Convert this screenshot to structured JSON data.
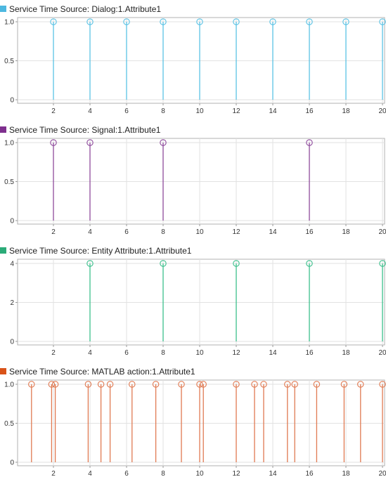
{
  "chart_data": [
    {
      "type": "stem",
      "title": "Service Time Source:  Dialog:1.Attribute1",
      "legend_color": "#4db8e0",
      "color": "#5ac2e4",
      "xlim": [
        0,
        20.2
      ],
      "ylim": [
        0,
        1.0
      ],
      "xticks": [
        2,
        4,
        6,
        8,
        10,
        12,
        14,
        16,
        18,
        20
      ],
      "yticks": [
        0,
        0.5,
        1.0
      ],
      "ytick_labels": [
        "0",
        "0.5",
        "1.0"
      ],
      "x": [
        2,
        4,
        6,
        8,
        10,
        12,
        14,
        16,
        18,
        20
      ],
      "y": [
        1,
        1,
        1,
        1,
        1,
        1,
        1,
        1,
        1,
        1
      ]
    },
    {
      "type": "stem",
      "title": "Service Time Source:  Signal:1.Attribute1",
      "legend_color": "#7e2f8e",
      "color": "#8e4a9c",
      "xlim": [
        0,
        20.2
      ],
      "ylim": [
        0,
        1.0
      ],
      "xticks": [
        2,
        4,
        6,
        8,
        10,
        12,
        14,
        16,
        18,
        20
      ],
      "yticks": [
        0,
        0.5,
        1.0
      ],
      "ytick_labels": [
        "0",
        "0.5",
        "1.0"
      ],
      "x": [
        2,
        4,
        8,
        16
      ],
      "y": [
        1,
        1,
        1,
        1
      ]
    },
    {
      "type": "stem",
      "title": "Service Time Source:  Entity Attribute:1.Attribute1",
      "legend_color": "#2bab78",
      "color": "#3cbf8c",
      "xlim": [
        0,
        20.2
      ],
      "ylim": [
        0,
        4
      ],
      "xticks": [
        2,
        4,
        6,
        8,
        10,
        12,
        14,
        16,
        18,
        20
      ],
      "yticks": [
        0,
        2,
        4
      ],
      "ytick_labels": [
        "0",
        "2",
        "4"
      ],
      "x": [
        4,
        8,
        12,
        16,
        20
      ],
      "y": [
        4,
        4,
        4,
        4,
        4
      ]
    },
    {
      "type": "stem",
      "title": "Service Time Source:  MATLAB action:1.Attribute1",
      "legend_color": "#d95319",
      "color": "#e07a52",
      "xlim": [
        0,
        20.2
      ],
      "ylim": [
        0,
        1.0
      ],
      "xticks": [
        2,
        4,
        6,
        8,
        10,
        12,
        14,
        16,
        18,
        20
      ],
      "yticks": [
        0,
        0.5,
        1.0
      ],
      "ytick_labels": [
        "0",
        "0.5",
        "1.0"
      ],
      "x": [
        0.8,
        1.9,
        2.1,
        3.9,
        4.6,
        5.1,
        6.3,
        7.6,
        9.0,
        10.0,
        10.2,
        12.0,
        13.0,
        13.5,
        14.8,
        15.2,
        16.4,
        17.9,
        18.8,
        20.0
      ],
      "y": [
        1,
        1,
        1,
        1,
        1,
        1,
        1,
        1,
        1,
        1,
        1,
        1,
        1,
        1,
        1,
        1,
        1,
        1,
        1,
        1
      ]
    }
  ]
}
